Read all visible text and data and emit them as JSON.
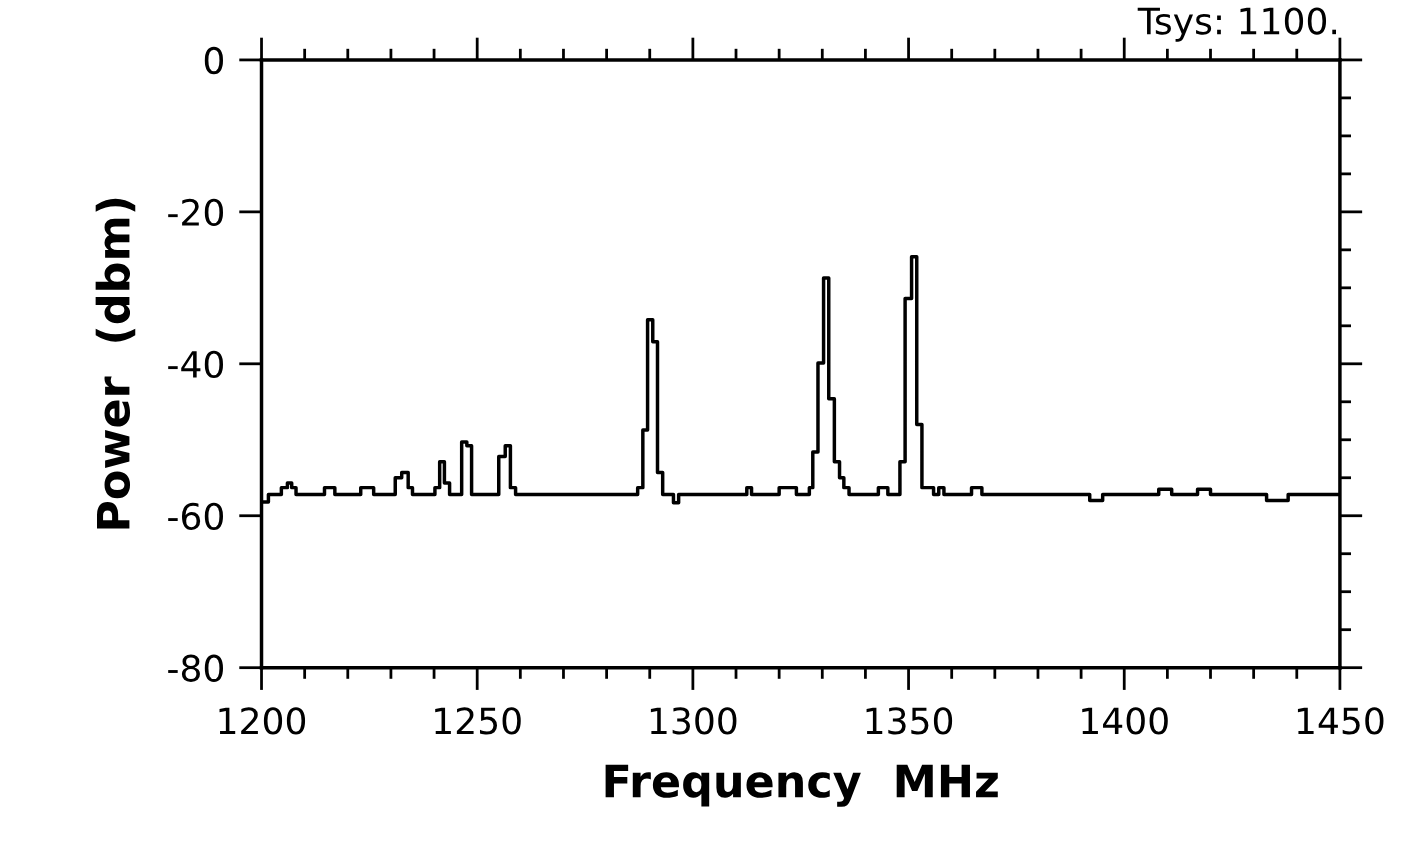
{
  "chart_data": {
    "type": "step",
    "xlabel": "Frequency  MHz",
    "ylabel": "Power  (dbm)",
    "annotations": [
      "Tsys: 1100."
    ],
    "x": [
      1200,
      1201.6,
      1204.6,
      1206,
      1207,
      1208,
      1214.6,
      1217,
      1223,
      1226,
      1231,
      1232.5,
      1234,
      1235,
      1240.2,
      1241.3,
      1242.4,
      1243.6,
      1246.4,
      1247.6,
      1248.7,
      1255,
      1256.5,
      1257.7,
      1258.9,
      1287.2,
      1288.4,
      1289.5,
      1290.7,
      1291.8,
      1293,
      1295.5,
      1296.7,
      1312.5,
      1313.6,
      1320,
      1324,
      1327,
      1327.8,
      1329,
      1330.3,
      1331.5,
      1332.8,
      1334,
      1335,
      1336.2,
      1343,
      1345.2,
      1348,
      1349.2,
      1350.7,
      1351.9,
      1353.1,
      1355.8,
      1357,
      1358.2,
      1364.6,
      1367,
      1392,
      1395,
      1408,
      1411,
      1417,
      1420,
      1433,
      1438,
      1450
    ],
    "series": [
      {
        "color": "#000000",
        "values": [
          -58.2,
          -57.2,
          -56.3,
          -55.7,
          -56.3,
          -57.2,
          -56.3,
          -57.2,
          -56.3,
          -57.2,
          -55,
          -54.3,
          -56.3,
          -57.2,
          -56.3,
          -52.9,
          -55.7,
          -57.2,
          -50.3,
          -50.8,
          -57.2,
          -52.2,
          -50.8,
          -56.3,
          -57.2,
          -56.3,
          -48.7,
          -34.2,
          -37.1,
          -54.3,
          -57.2,
          -58.3,
          -57.2,
          -56.3,
          -57.2,
          -56.3,
          -57.2,
          -56.3,
          -51.6,
          -39.9,
          -28.7,
          -44.6,
          -52.9,
          -55,
          -56.3,
          -57.2,
          -56.3,
          -57.2,
          -52.9,
          -31.4,
          -25.9,
          -48,
          -56.3,
          -57.2,
          -56.3,
          -57.2,
          -56.3,
          -57.2,
          -58,
          -57.2,
          -56.5,
          -57.2,
          -56.5,
          -57.2,
          -58,
          -57.2,
          -57.2
        ]
      }
    ],
    "xlim": [
      1200,
      1450
    ],
    "xticks": [
      1200,
      1250,
      1300,
      1350,
      1400,
      1450
    ],
    "ylim": [
      -80,
      0
    ],
    "yticks": [
      -80,
      -60,
      -40,
      -20,
      0
    ],
    "grid": false,
    "legend": false
  }
}
